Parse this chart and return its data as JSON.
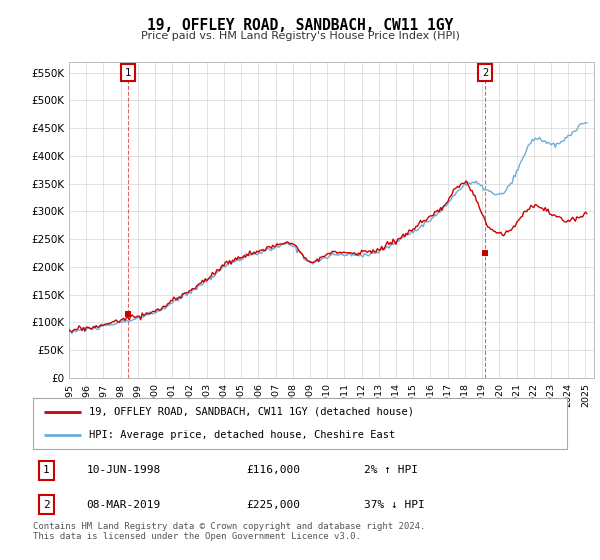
{
  "title": "19, OFFLEY ROAD, SANDBACH, CW11 1GY",
  "subtitle": "Price paid vs. HM Land Registry's House Price Index (HPI)",
  "ylabel_ticks": [
    "£0",
    "£50K",
    "£100K",
    "£150K",
    "£200K",
    "£250K",
    "£300K",
    "£350K",
    "£400K",
    "£450K",
    "£500K",
    "£550K"
  ],
  "ytick_values": [
    0,
    50000,
    100000,
    150000,
    200000,
    250000,
    300000,
    350000,
    400000,
    450000,
    500000,
    550000
  ],
  "ylim": [
    0,
    570000
  ],
  "sale1_price": 116000,
  "sale1_x": 1998.44,
  "sale2_price": 225000,
  "sale2_x": 2019.18,
  "legend_line1": "19, OFFLEY ROAD, SANDBACH, CW11 1GY (detached house)",
  "legend_line2": "HPI: Average price, detached house, Cheshire East",
  "table_row1": [
    "1",
    "10-JUN-1998",
    "£116,000",
    "2% ↑ HPI"
  ],
  "table_row2": [
    "2",
    "08-MAR-2019",
    "£225,000",
    "37% ↓ HPI"
  ],
  "footer": "Contains HM Land Registry data © Crown copyright and database right 2024.\nThis data is licensed under the Open Government Licence v3.0.",
  "hpi_color": "#6baed6",
  "price_color": "#cc0000",
  "bg_color": "#ffffff",
  "grid_color": "#dddddd",
  "hpi_keypoints_x": [
    1995,
    1996,
    1997,
    1998,
    1999,
    2000,
    2001,
    2002,
    2003,
    2004,
    2005,
    2006,
    2007,
    2008,
    2009,
    2010,
    2011,
    2012,
    2013,
    2014,
    2015,
    2016,
    2017,
    2018,
    2019,
    2020,
    2021,
    2022,
    2023,
    2024,
    2025.2
  ],
  "hpi_keypoints_y": [
    82000,
    88000,
    93000,
    100000,
    108000,
    118000,
    135000,
    155000,
    175000,
    200000,
    215000,
    225000,
    235000,
    238000,
    210000,
    218000,
    222000,
    222000,
    228000,
    245000,
    265000,
    285000,
    315000,
    348000,
    345000,
    330000,
    370000,
    430000,
    420000,
    435000,
    460000
  ],
  "price_keypoints_x": [
    1995,
    1996,
    1997,
    1998,
    1999,
    2000,
    2001,
    2002,
    2003,
    2004,
    2005,
    2006,
    2007,
    2008,
    2009,
    2010,
    2011,
    2012,
    2013,
    2014,
    2015,
    2016,
    2017,
    2018,
    2019,
    2020,
    2021,
    2022,
    2023,
    2024,
    2025.2
  ],
  "price_keypoints_y": [
    85000,
    90000,
    95000,
    105000,
    112000,
    120000,
    138000,
    158000,
    178000,
    203000,
    218000,
    228000,
    238000,
    242000,
    212000,
    222000,
    226000,
    226000,
    232000,
    248000,
    268000,
    290000,
    318000,
    352000,
    295000,
    260000,
    280000,
    310000,
    295000,
    285000,
    302000
  ]
}
